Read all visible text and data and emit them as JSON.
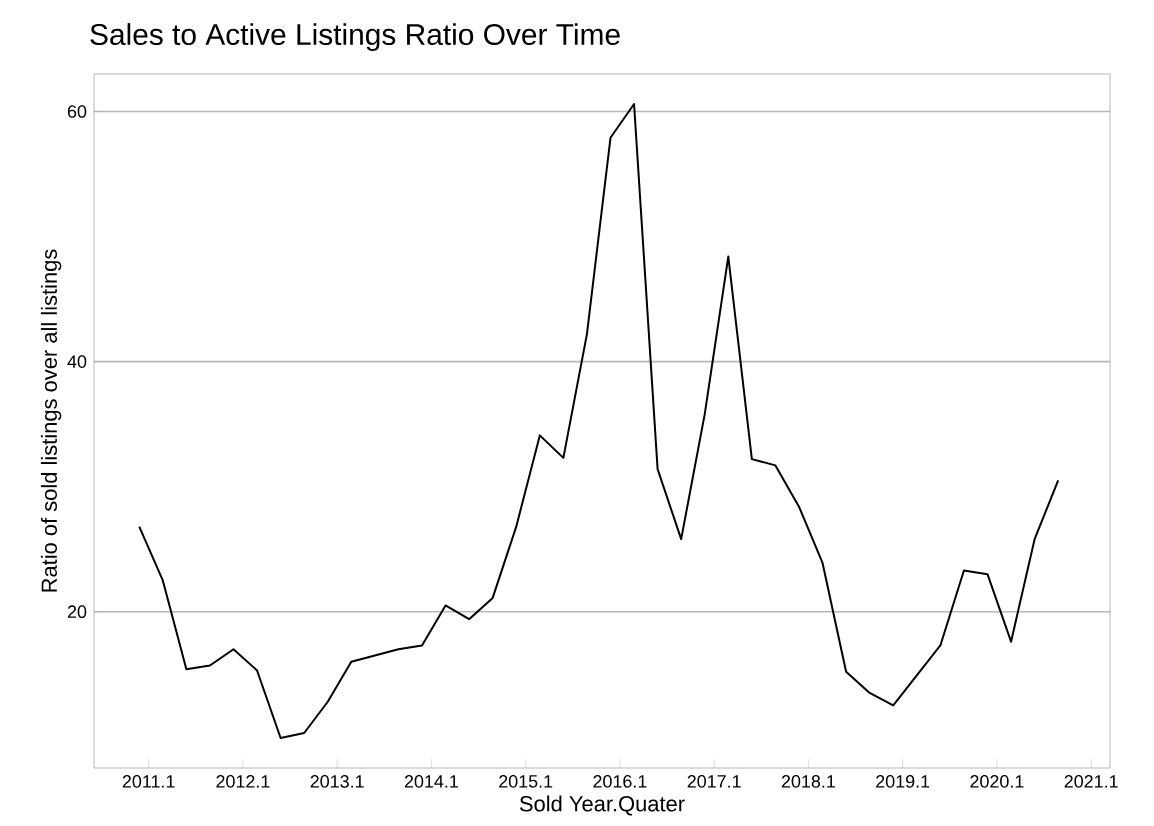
{
  "chart_data": {
    "type": "line",
    "title": "Sales to Active Listings Ratio Over Time",
    "xlabel": "Sold Year.Quater",
    "ylabel": "Ratio of sold listings over all listings",
    "x": [
      2011.0,
      2011.25,
      2011.5,
      2011.75,
      2012.0,
      2012.25,
      2012.5,
      2012.75,
      2013.0,
      2013.25,
      2013.5,
      2013.75,
      2014.0,
      2014.25,
      2014.5,
      2014.75,
      2015.0,
      2015.25,
      2015.5,
      2015.75,
      2016.0,
      2016.25,
      2016.5,
      2016.75,
      2017.0,
      2017.25,
      2017.5,
      2017.75,
      2018.0,
      2018.25,
      2018.5,
      2018.75,
      2019.0,
      2019.25,
      2019.5,
      2019.75,
      2020.0,
      2020.25,
      2020.5,
      2020.75
    ],
    "series": [
      {
        "color": "#000000",
        "values": [
          26.8,
          22.5,
          15.4,
          15.7,
          17.0,
          15.3,
          9.9,
          10.3,
          12.8,
          16.0,
          16.5,
          17.0,
          17.3,
          20.5,
          19.4,
          21.1,
          26.8,
          34.1,
          32.3,
          42.2,
          57.9,
          60.6,
          31.4,
          25.8,
          35.8,
          48.4,
          32.2,
          31.7,
          28.4,
          23.9,
          15.2,
          13.5,
          12.5,
          14.9,
          17.3,
          23.3,
          23.0,
          17.6,
          25.8,
          30.5
        ]
      }
    ],
    "xlim": [
      2010.52,
      2021.3
    ],
    "ylim": [
      7.5,
      63
    ],
    "xticks": [
      2011.1,
      2012.1,
      2013.1,
      2014.1,
      2015.1,
      2016.1,
      2017.1,
      2018.1,
      2019.1,
      2020.1,
      2021.1
    ],
    "yticks": [
      20,
      40,
      60
    ],
    "grid": "y",
    "marker": "none",
    "line_style": "solid"
  }
}
